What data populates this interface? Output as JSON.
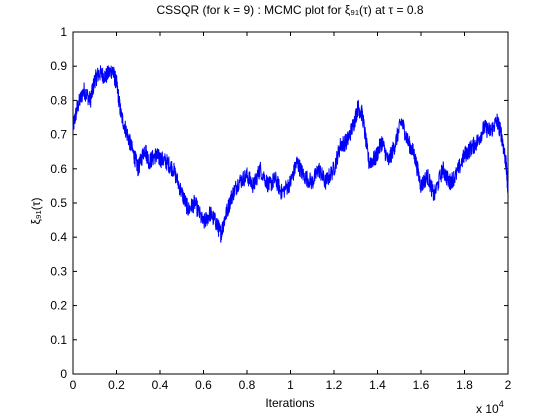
{
  "chart_data": {
    "type": "line",
    "title": "CSSQR (for k = 9) : MCMC plot for ξ₉₁(τ) at τ = 0.8",
    "xlabel": "Iterations",
    "ylabel": "ξ₉₁(τ)",
    "x_multiplier_label": "x 10",
    "x_multiplier_exponent": "4",
    "xlim": [
      0,
      2
    ],
    "ylim": [
      0,
      1
    ],
    "x_ticks": [
      "0",
      "0.2",
      "0.4",
      "0.6",
      "0.8",
      "1",
      "1.2",
      "1.4",
      "1.6",
      "1.8",
      "2"
    ],
    "y_ticks": [
      "0",
      "0.1",
      "0.2",
      "0.3",
      "0.4",
      "0.5",
      "0.6",
      "0.7",
      "0.8",
      "0.9",
      "1"
    ],
    "grid": false,
    "series": [
      {
        "color": "#0000ff",
        "x": [
          0,
          0.02,
          0.05,
          0.08,
          0.1,
          0.12,
          0.15,
          0.18,
          0.2,
          0.22,
          0.25,
          0.28,
          0.3,
          0.33,
          0.35,
          0.38,
          0.4,
          0.43,
          0.46,
          0.5,
          0.53,
          0.56,
          0.6,
          0.63,
          0.66,
          0.68,
          0.7,
          0.73,
          0.76,
          0.8,
          0.83,
          0.86,
          0.9,
          0.93,
          0.96,
          1.0,
          1.03,
          1.06,
          1.1,
          1.13,
          1.16,
          1.2,
          1.23,
          1.26,
          1.29,
          1.31,
          1.33,
          1.36,
          1.39,
          1.42,
          1.45,
          1.48,
          1.51,
          1.54,
          1.57,
          1.6,
          1.63,
          1.66,
          1.7,
          1.73,
          1.76,
          1.8,
          1.83,
          1.86,
          1.89,
          1.92,
          1.95,
          1.97,
          1.99,
          2.0
        ],
        "y": [
          0.72,
          0.78,
          0.83,
          0.8,
          0.86,
          0.88,
          0.87,
          0.89,
          0.85,
          0.76,
          0.7,
          0.64,
          0.6,
          0.66,
          0.62,
          0.64,
          0.63,
          0.62,
          0.6,
          0.53,
          0.48,
          0.5,
          0.44,
          0.47,
          0.44,
          0.41,
          0.46,
          0.52,
          0.56,
          0.58,
          0.55,
          0.6,
          0.55,
          0.57,
          0.53,
          0.56,
          0.62,
          0.58,
          0.56,
          0.6,
          0.56,
          0.6,
          0.67,
          0.68,
          0.73,
          0.78,
          0.76,
          0.62,
          0.63,
          0.68,
          0.62,
          0.67,
          0.74,
          0.68,
          0.64,
          0.55,
          0.58,
          0.52,
          0.6,
          0.56,
          0.58,
          0.64,
          0.66,
          0.68,
          0.72,
          0.71,
          0.74,
          0.7,
          0.62,
          0.54
        ]
      }
    ]
  }
}
